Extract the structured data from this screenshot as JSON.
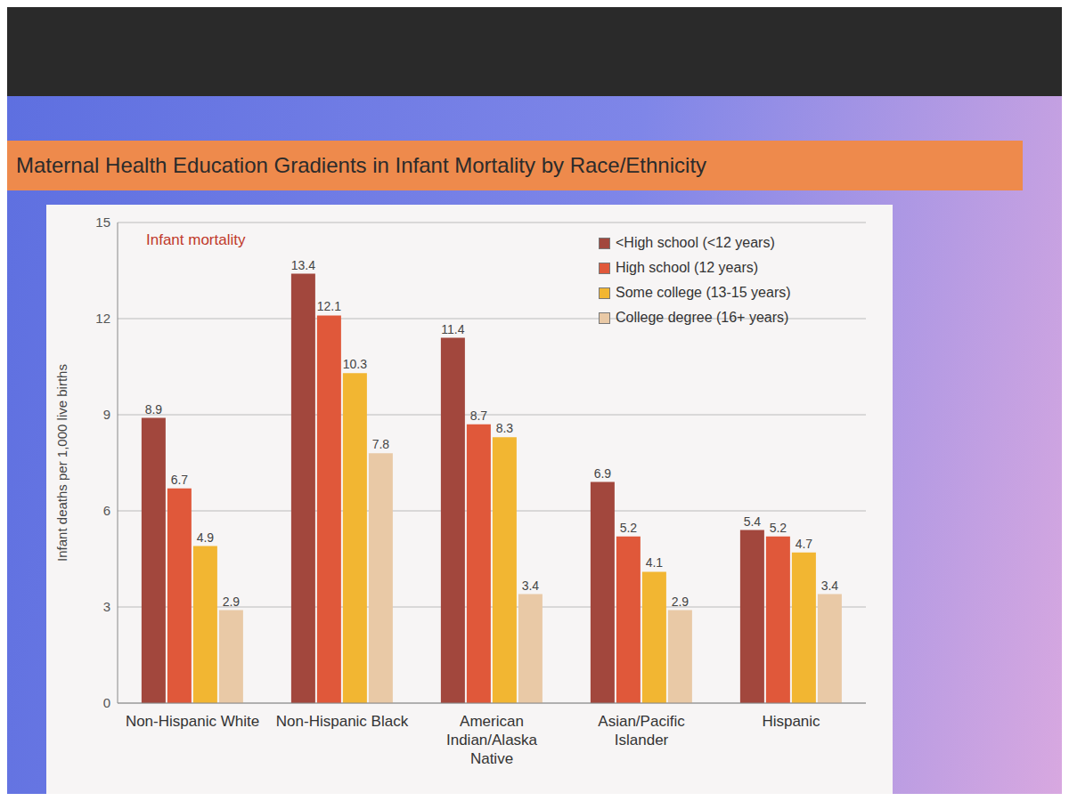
{
  "chart_data": {
    "type": "bar",
    "title": "Maternal Health Education Gradients in Infant Mortality by Race/Ethnicity",
    "annotation": "Infant mortality",
    "y_label": "Infant deaths per 1,000 live births",
    "categories": [
      "Non-Hispanic White",
      "Non-Hispanic Black",
      "American Indian/Alaska Native",
      "Asian/Pacific Islander",
      "Hispanic"
    ],
    "series": [
      {
        "name": "<High school (<12 years)",
        "color": "#a2473d",
        "values": [
          8.9,
          13.4,
          11.4,
          6.9,
          5.4
        ]
      },
      {
        "name": "High school (12 years)",
        "color": "#e0583a",
        "values": [
          6.7,
          12.1,
          8.7,
          5.2,
          5.2
        ]
      },
      {
        "name": "Some college (13-15 years)",
        "color": "#f2b632",
        "values": [
          4.9,
          10.3,
          8.3,
          4.1,
          4.7
        ]
      },
      {
        "name": "College degree (16+ years)",
        "color": "#e9c9a6",
        "values": [
          2.9,
          7.8,
          3.4,
          2.9,
          3.4
        ]
      }
    ],
    "ylim": [
      0,
      15
    ],
    "yticks": [
      0,
      3,
      6,
      9,
      12,
      15
    ],
    "grid": true,
    "legend": "upper right",
    "data_labels": true
  }
}
